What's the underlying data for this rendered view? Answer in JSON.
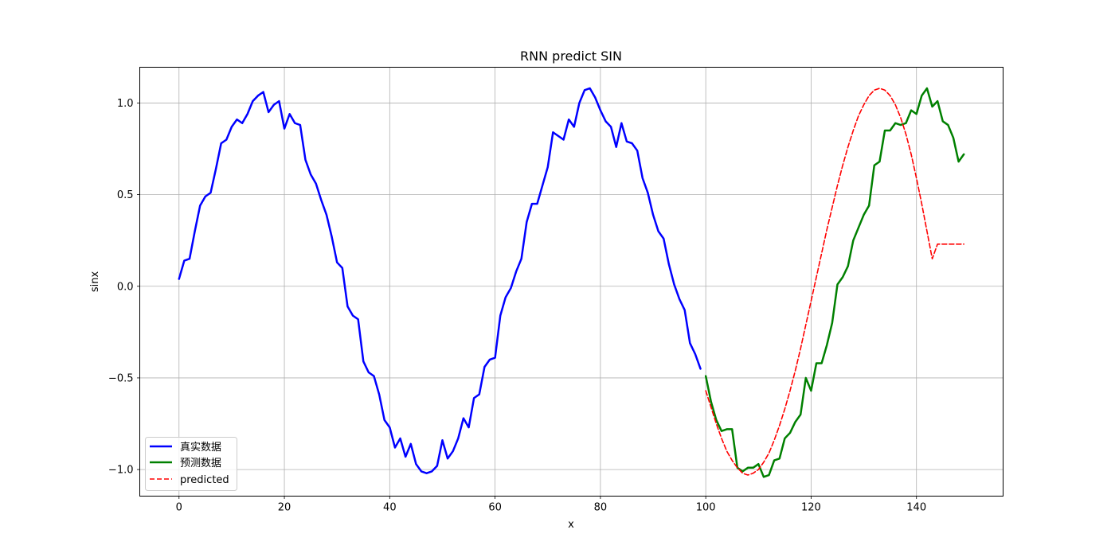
{
  "chart_data": {
    "type": "line",
    "title": "RNN predict SIN",
    "xlabel": "x",
    "ylabel": "sinx",
    "xlim": [
      -7.45,
      156.45
    ],
    "ylim": [
      -1.145,
      1.195
    ],
    "xticks": [
      0,
      20,
      40,
      60,
      80,
      100,
      120,
      140
    ],
    "yticks": [
      -1.0,
      -0.5,
      0.0,
      0.5,
      1.0
    ],
    "ytick_labels": [
      "−1.0",
      "−0.5",
      "0.0",
      "0.5",
      "1.0"
    ],
    "grid": true,
    "legend_position": "lower-left",
    "series": [
      {
        "name": "真实数据",
        "color": "#0000ff",
        "style": "solid",
        "x": [
          0,
          1,
          2,
          3,
          4,
          5,
          6,
          7,
          8,
          9,
          10,
          11,
          12,
          13,
          14,
          15,
          16,
          17,
          18,
          19,
          20,
          21,
          22,
          23,
          24,
          25,
          26,
          27,
          28,
          29,
          30,
          31,
          32,
          33,
          34,
          35,
          36,
          37,
          38,
          39,
          40,
          41,
          42,
          43,
          44,
          45,
          46,
          47,
          48,
          49,
          50,
          51,
          52,
          53,
          54,
          55,
          56,
          57,
          58,
          59,
          60,
          61,
          62,
          63,
          64,
          65,
          66,
          67,
          68,
          69,
          70,
          71,
          72,
          73,
          74,
          75,
          76,
          77,
          78,
          79,
          80,
          81,
          82,
          83,
          84,
          85,
          86,
          87,
          88,
          89,
          90,
          91,
          92,
          93,
          94,
          95,
          96,
          97,
          98,
          99
        ],
        "y": [
          0.04,
          0.14,
          0.15,
          0.3,
          0.44,
          0.49,
          0.51,
          0.64,
          0.78,
          0.8,
          0.87,
          0.91,
          0.89,
          0.94,
          1.01,
          1.04,
          1.06,
          0.95,
          0.99,
          1.01,
          0.86,
          0.94,
          0.89,
          0.88,
          0.69,
          0.61,
          0.56,
          0.47,
          0.39,
          0.27,
          0.13,
          0.1,
          -0.11,
          -0.16,
          -0.18,
          -0.41,
          -0.47,
          -0.49,
          -0.59,
          -0.73,
          -0.77,
          -0.88,
          -0.83,
          -0.93,
          -0.86,
          -0.97,
          -1.01,
          -1.02,
          -1.01,
          -0.98,
          -0.84,
          -0.94,
          -0.9,
          -0.83,
          -0.72,
          -0.77,
          -0.61,
          -0.59,
          -0.44,
          -0.4,
          -0.39,
          -0.16,
          -0.06,
          -0.01,
          0.08,
          0.15,
          0.35,
          0.45,
          0.45,
          0.55,
          0.65,
          0.84,
          0.82,
          0.8,
          0.91,
          0.87,
          1.0,
          1.07,
          1.08,
          1.03,
          0.96,
          0.9,
          0.87,
          0.76,
          0.89,
          0.79,
          0.78,
          0.74,
          0.59,
          0.51,
          0.39,
          0.3,
          0.26,
          0.12,
          0.01,
          -0.07,
          -0.13,
          -0.31,
          -0.37,
          -0.45
        ]
      },
      {
        "name": "预测数据",
        "color": "#008000",
        "style": "solid",
        "x": [
          100,
          101,
          102,
          103,
          104,
          105,
          106,
          107,
          108,
          109,
          110,
          111,
          112,
          113,
          114,
          115,
          116,
          117,
          118,
          119,
          120,
          121,
          122,
          123,
          124,
          125,
          126,
          127,
          128,
          129,
          130,
          131,
          132,
          133,
          134,
          135,
          136,
          137,
          138,
          139,
          140,
          141,
          142,
          143,
          144,
          145,
          146,
          147,
          148,
          149
        ],
        "y": [
          -0.49,
          -0.63,
          -0.73,
          -0.79,
          -0.78,
          -0.78,
          -0.99,
          -1.01,
          -0.99,
          -0.99,
          -0.97,
          -1.04,
          -1.03,
          -0.95,
          -0.94,
          -0.83,
          -0.8,
          -0.74,
          -0.7,
          -0.5,
          -0.57,
          -0.42,
          -0.42,
          -0.32,
          -0.2,
          0.01,
          0.05,
          0.11,
          0.25,
          0.32,
          0.39,
          0.44,
          0.66,
          0.68,
          0.85,
          0.85,
          0.89,
          0.88,
          0.89,
          0.96,
          0.94,
          1.04,
          1.08,
          0.98,
          1.01,
          0.9,
          0.88,
          0.81,
          0.68,
          0.72
        ]
      },
      {
        "name": "predicted",
        "color": "#ff0000",
        "style": "dashed",
        "x": [
          100,
          101,
          102,
          103,
          104,
          105,
          106,
          107,
          108,
          109,
          110,
          111,
          112,
          113,
          114,
          115,
          116,
          117,
          118,
          119,
          120,
          121,
          122,
          123,
          124,
          125,
          126,
          127,
          128,
          129,
          130,
          131,
          132,
          133,
          134,
          135,
          136,
          137,
          138,
          139,
          140,
          141,
          142,
          143,
          144,
          145,
          146,
          147,
          148,
          149
        ],
        "y": [
          -0.57,
          -0.66,
          -0.75,
          -0.83,
          -0.9,
          -0.95,
          -0.99,
          -1.02,
          -1.03,
          -1.02,
          -1.0,
          -0.96,
          -0.91,
          -0.84,
          -0.76,
          -0.67,
          -0.57,
          -0.46,
          -0.34,
          -0.21,
          -0.08,
          0.05,
          0.18,
          0.31,
          0.43,
          0.55,
          0.66,
          0.76,
          0.85,
          0.93,
          0.99,
          1.04,
          1.07,
          1.08,
          1.07,
          1.04,
          0.99,
          0.92,
          0.83,
          0.72,
          0.59,
          0.45,
          0.3,
          0.15,
          0.23,
          0.23,
          0.23,
          0.23,
          0.23,
          0.23
        ]
      }
    ]
  }
}
